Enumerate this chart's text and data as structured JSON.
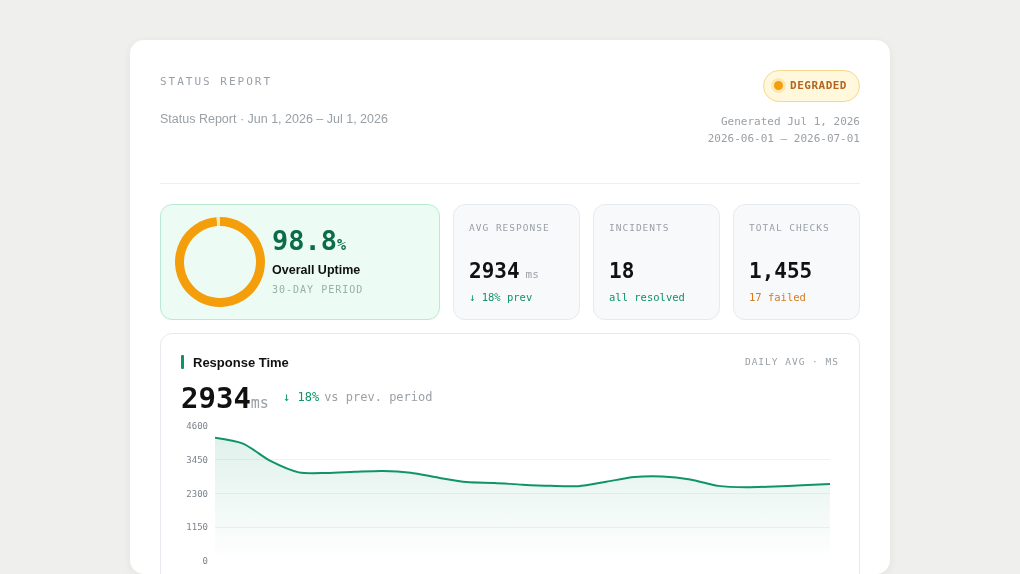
{
  "chart_data": [
    {
      "type": "other",
      "title": "STATUS REPORT",
      "subtitle": "Status Report · Jun 1, 2026 – Jul 1, 2026",
      "annotations": [
        "DEGRADED",
        "Generated Jul 1, 2026",
        "2026-06-01 — 2026-07-01"
      ]
    },
    {
      "type": "donut",
      "title": "Overall Uptime",
      "subtitle": "30-DAY PERIOD",
      "categories": [
        null,
        null
      ],
      "values": [
        98.8,
        1.2
      ],
      "colors": [
        "#f59e0b",
        "#fde7b0"
      ],
      "value_labels": [
        "98.8%",
        null
      ],
      "legend": false
    },
    {
      "type": "other",
      "title": "AVG RESPONSE",
      "annotations": [
        "2934",
        "ms",
        "↓ 18% prev"
      ],
      "color": "#0f9466"
    },
    {
      "type": "other",
      "title": "INCIDENTS",
      "annotations": [
        "18",
        "all resolved"
      ],
      "color": "#0f9466"
    },
    {
      "type": "other",
      "title": "TOTAL CHECKS",
      "annotations": [
        "1,455",
        "17 failed"
      ],
      "color": "#d97a1e"
    },
    {
      "type": "area",
      "title": "Response Time",
      "subtitle": "DAILY AVG · MS",
      "annotations": [
        "2934",
        "ms",
        "↓ 18%",
        "vs prev. period"
      ],
      "categories": [
        null,
        null,
        null,
        null,
        null,
        null,
        null,
        null,
        null,
        null,
        null,
        null,
        null,
        null,
        null,
        null,
        null,
        null,
        null,
        null,
        null,
        null,
        null
      ],
      "series": [
        {
          "color": "#0f9466",
          "values": [
            4200,
            4000,
            3400,
            3020,
            3000,
            3040,
            3070,
            3010,
            2840,
            2690,
            2660,
            2600,
            2560,
            2550,
            2700,
            2860,
            2880,
            2780,
            2560,
            2510,
            2540,
            2580,
            2620
          ]
        }
      ],
      "ylim": [
        0,
        4600
      ],
      "yticks": [
        0,
        1150,
        2300,
        3450,
        4600
      ],
      "grid": "y",
      "legend": false,
      "marker": "none",
      "line_style": "solid"
    }
  ]
}
